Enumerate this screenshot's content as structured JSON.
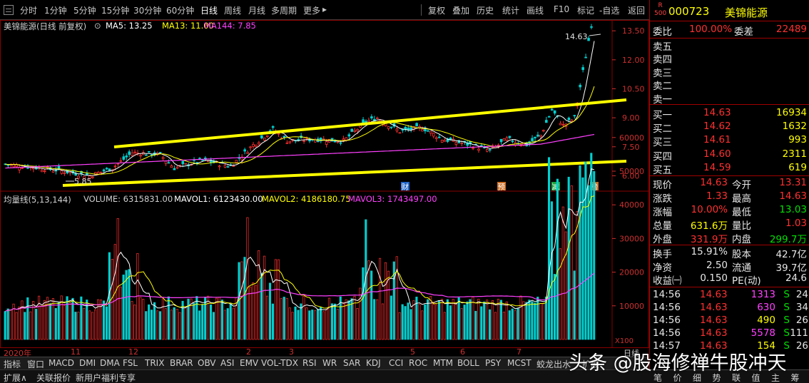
{
  "toolbar": {
    "periods": [
      "分时",
      "1分钟",
      "5分钟",
      "15分钟",
      "30分钟",
      "60分钟",
      "日线",
      "周线",
      "月线",
      "多周期",
      "更多"
    ],
    "active_period": "日线",
    "more_chevron": "▸",
    "actions": [
      "复权",
      "叠加",
      "历史",
      "统计",
      "画线",
      "F10",
      "标记",
      "-自选",
      "返回"
    ],
    "nav_arrow": "◀"
  },
  "main_chart": {
    "title": "美锦能源(日线 前复权)",
    "ma5": "MA5: 13.25",
    "ma13": "MA13: 11.00",
    "ma144": "MA144: 7.85",
    "y_ticks": [
      "13.50",
      "12.00",
      "10.50",
      "9.00",
      "7.50",
      "6.00"
    ],
    "high_label": "14.63",
    "low_label": "5.85",
    "event_markers": [
      "财",
      "预",
      "减",
      "榜"
    ],
    "colors": {
      "up": "#ff3030",
      "down": "#00d0d0",
      "ma5": "#ffffff",
      "ma13": "#ffff00",
      "ma144": "#ff40ff",
      "trendline": "#ffff00"
    }
  },
  "volume_chart": {
    "title": "均量线(5,13,144)",
    "volume": "VOLUME: 6315831.00",
    "mavol1": "MAVOL1: 6123430.00",
    "mavol2": "MAVOL2: 4186180.75",
    "mavol3": "MAVOL3: 1743497.00",
    "y_ticks": [
      "60000",
      "50000",
      "40000",
      "30000",
      "20000",
      "10000"
    ],
    "unit": "X100"
  },
  "x_axis": {
    "labels": [
      "2020年",
      "11",
      "12",
      "2",
      "3",
      "5",
      "6",
      "7"
    ],
    "right_label": "日线"
  },
  "indicator_tabs": [
    "指标",
    "窗口",
    "MACD",
    "DMI",
    "DMA",
    "FSL",
    "TRIX",
    "BRAR",
    "OBV",
    "ASI",
    "EMV",
    "VOL-TDX",
    "RSI",
    "WR",
    "SAR",
    "KDJ",
    "CCI",
    "ROC",
    "MTM",
    "BOLL",
    "PSY",
    "MCST",
    "蛟龙出水",
    "扩展"
  ],
  "bottom_tabs": [
    "扩展∧",
    "关联报价",
    "新用户福利专享"
  ],
  "quote": {
    "market_badge": "R\n500",
    "code": "000723",
    "name": "美锦能源",
    "weibi_label": "委比",
    "weibi_value": "100.00%",
    "weicha_label": "委差",
    "weicha_value": "22489",
    "asks": [
      {
        "label": "卖五",
        "price": "",
        "vol": ""
      },
      {
        "label": "卖四",
        "price": "",
        "vol": ""
      },
      {
        "label": "卖三",
        "price": "",
        "vol": ""
      },
      {
        "label": "卖二",
        "price": "",
        "vol": ""
      },
      {
        "label": "卖一",
        "price": "",
        "vol": ""
      }
    ],
    "bids": [
      {
        "label": "买一",
        "price": "14.63",
        "vol": "16934"
      },
      {
        "label": "买二",
        "price": "14.62",
        "vol": "1632"
      },
      {
        "label": "买三",
        "price": "14.61",
        "vol": "993"
      },
      {
        "label": "买四",
        "price": "14.60",
        "vol": "2311"
      },
      {
        "label": "买五",
        "price": "14.59",
        "vol": "619"
      }
    ],
    "stats": [
      {
        "l1": "现价",
        "v1": "14.63",
        "l2": "今开",
        "v2": "13.31"
      },
      {
        "l1": "涨跌",
        "v1": "1.33",
        "l2": "最高",
        "v2": "14.63"
      },
      {
        "l1": "涨幅",
        "v1": "10.00%",
        "l2": "最低",
        "v2": "13.03"
      },
      {
        "l1": "总量",
        "v1": "631.6万",
        "l2": "量比",
        "v2": "1.03"
      },
      {
        "l1": "外盘",
        "v1": "331.9万",
        "l2": "内盘",
        "v2": "299.7万"
      }
    ],
    "fund": [
      {
        "l1": "换手",
        "v1": "15.91%",
        "l2": "股本",
        "v2": "42.7亿"
      },
      {
        "l1": "净资",
        "v1": "2.50",
        "l2": "流通",
        "v2": "39.7亿"
      },
      {
        "l1": "收益㈠",
        "v1": "0.150",
        "l2": "PE(动)",
        "v2": "24.6"
      }
    ],
    "ticks": [
      {
        "time": "14:56",
        "price": "14.63",
        "vol": "1313",
        "side": "S",
        "n": "24"
      },
      {
        "time": "14:56",
        "price": "14.63",
        "vol": "630",
        "side": "S",
        "n": "34"
      },
      {
        "time": "14:56",
        "price": "14.63",
        "vol": "490",
        "side": "S",
        "n": "26"
      },
      {
        "time": "14:56",
        "price": "14.63",
        "vol": "5578",
        "side": "S",
        "n": "111"
      },
      {
        "time": "14:57",
        "price": "14.63",
        "vol": "154",
        "side": "S",
        "n": "26"
      }
    ],
    "panel_tabs": [
      "笔",
      "价",
      "细",
      "势",
      "联",
      "值",
      "主",
      "筹"
    ]
  },
  "watermark": "头条 @股海修禅牛股冲天"
}
